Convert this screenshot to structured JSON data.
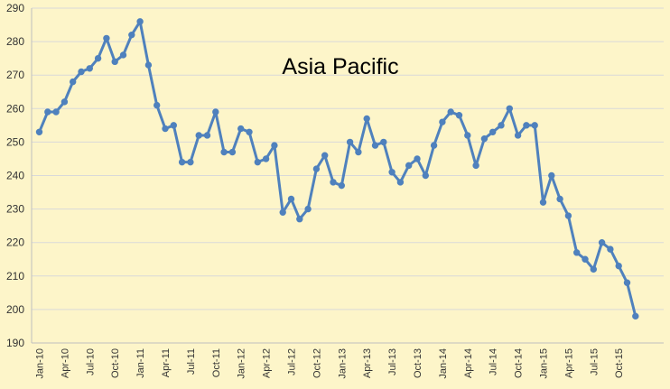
{
  "chart_data": {
    "type": "line",
    "title": "Asia Pacific",
    "xlabel": "",
    "ylabel": "",
    "ylim": [
      190,
      290
    ],
    "y_ticks": [
      190,
      200,
      210,
      220,
      230,
      240,
      250,
      260,
      270,
      280,
      290
    ],
    "x_tick_labels": [
      "Jan-10",
      "Apr-10",
      "Jul-10",
      "Oct-10",
      "Jan-11",
      "Apr-11",
      "Jul-11",
      "Oct-11",
      "Jan-12",
      "Apr-12",
      "Jul-12",
      "Oct-12",
      "Jan-13",
      "Apr-13",
      "Jul-13",
      "Oct-13",
      "Jan-14",
      "Apr-14",
      "Jul-14",
      "Oct-14",
      "Jan-15",
      "Apr-15",
      "Jul-15",
      "Oct-15"
    ],
    "grid": "horizontal",
    "legend": "none",
    "colors": {
      "background": "#fdf5c9",
      "line": "#4f81bd",
      "grid": "#d9d9d9"
    },
    "series": [
      {
        "color": "#4f81bd",
        "x": [
          "Jan-10",
          "Feb-10",
          "Mar-10",
          "Apr-10",
          "May-10",
          "Jun-10",
          "Jul-10",
          "Aug-10",
          "Sep-10",
          "Oct-10",
          "Nov-10",
          "Dec-10",
          "Jan-11",
          "Feb-11",
          "Mar-11",
          "Apr-11",
          "May-11",
          "Jun-11",
          "Jul-11",
          "Aug-11",
          "Sep-11",
          "Oct-11",
          "Nov-11",
          "Dec-11",
          "Jan-12",
          "Feb-12",
          "Mar-12",
          "Apr-12",
          "May-12",
          "Jun-12",
          "Jul-12",
          "Aug-12",
          "Sep-12",
          "Oct-12",
          "Nov-12",
          "Dec-12",
          "Jan-13",
          "Feb-13",
          "Mar-13",
          "Apr-13",
          "May-13",
          "Jun-13",
          "Jul-13",
          "Aug-13",
          "Sep-13",
          "Oct-13",
          "Nov-13",
          "Dec-13",
          "Jan-14",
          "Feb-14",
          "Mar-14",
          "Apr-14",
          "May-14",
          "Jun-14",
          "Jul-14",
          "Aug-14",
          "Sep-14",
          "Oct-14",
          "Nov-14",
          "Dec-14",
          "Jan-15",
          "Feb-15",
          "Mar-15",
          "Apr-15",
          "May-15",
          "Jun-15",
          "Jul-15",
          "Aug-15",
          "Sep-15",
          "Oct-15",
          "Nov-15",
          "Dec-15"
        ],
        "values": [
          253,
          259,
          259,
          262,
          268,
          271,
          272,
          275,
          281,
          274,
          276,
          282,
          286,
          273,
          261,
          254,
          255,
          244,
          244,
          252,
          252,
          259,
          247,
          247,
          254,
          253,
          244,
          245,
          249,
          229,
          233,
          227,
          230,
          242,
          246,
          238,
          237,
          250,
          247,
          257,
          249,
          250,
          241,
          238,
          243,
          245,
          240,
          249,
          256,
          259,
          258,
          252,
          243,
          251,
          253,
          255,
          260,
          252,
          255,
          255,
          232,
          240,
          233,
          228,
          217,
          215,
          212,
          220,
          218,
          213,
          208,
          198
        ]
      }
    ]
  }
}
